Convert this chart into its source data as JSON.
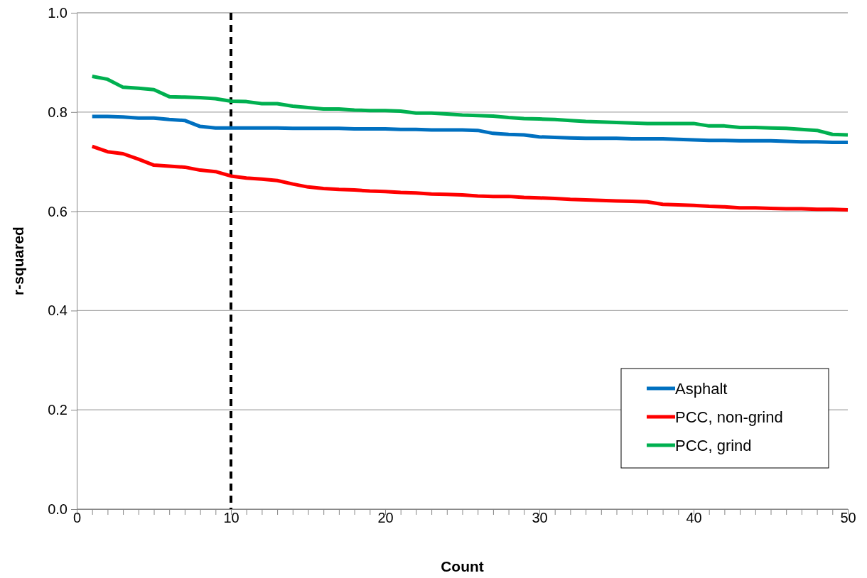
{
  "chart_data": {
    "type": "line",
    "xlabel": "Count",
    "ylabel": "r-squared",
    "x": [
      1,
      2,
      3,
      4,
      5,
      6,
      7,
      8,
      9,
      10,
      11,
      12,
      13,
      14,
      15,
      16,
      17,
      18,
      19,
      20,
      21,
      22,
      23,
      24,
      25,
      26,
      27,
      28,
      29,
      30,
      31,
      32,
      33,
      34,
      35,
      36,
      37,
      38,
      39,
      40,
      41,
      42,
      43,
      44,
      45,
      46,
      47,
      48,
      49,
      50
    ],
    "series": [
      {
        "name": "Asphalt",
        "color": "#0070c0",
        "values": [
          0.791,
          0.791,
          0.79,
          0.788,
          0.788,
          0.785,
          0.783,
          0.771,
          0.768,
          0.768,
          0.768,
          0.768,
          0.768,
          0.767,
          0.767,
          0.767,
          0.767,
          0.766,
          0.766,
          0.766,
          0.765,
          0.765,
          0.764,
          0.764,
          0.764,
          0.763,
          0.757,
          0.755,
          0.754,
          0.75,
          0.749,
          0.748,
          0.747,
          0.747,
          0.747,
          0.746,
          0.746,
          0.746,
          0.745,
          0.744,
          0.743,
          0.743,
          0.742,
          0.742,
          0.742,
          0.741,
          0.74,
          0.74,
          0.739,
          0.739
        ]
      },
      {
        "name": "PCC, non-grind",
        "color": "#ff0000",
        "values": [
          0.731,
          0.72,
          0.716,
          0.705,
          0.693,
          0.691,
          0.689,
          0.683,
          0.68,
          0.671,
          0.667,
          0.665,
          0.662,
          0.655,
          0.649,
          0.646,
          0.644,
          0.643,
          0.641,
          0.64,
          0.638,
          0.637,
          0.635,
          0.634,
          0.633,
          0.631,
          0.63,
          0.63,
          0.628,
          0.627,
          0.626,
          0.624,
          0.623,
          0.622,
          0.621,
          0.62,
          0.619,
          0.614,
          0.613,
          0.612,
          0.61,
          0.609,
          0.607,
          0.607,
          0.606,
          0.605,
          0.605,
          0.604,
          0.604,
          0.603
        ]
      },
      {
        "name": "PCC, grind",
        "color": "#00b050",
        "values": [
          0.872,
          0.866,
          0.85,
          0.848,
          0.845,
          0.831,
          0.83,
          0.829,
          0.827,
          0.822,
          0.821,
          0.817,
          0.817,
          0.812,
          0.809,
          0.806,
          0.806,
          0.804,
          0.803,
          0.803,
          0.802,
          0.798,
          0.798,
          0.796,
          0.794,
          0.793,
          0.792,
          0.789,
          0.787,
          0.786,
          0.785,
          0.783,
          0.781,
          0.78,
          0.779,
          0.778,
          0.777,
          0.777,
          0.777,
          0.777,
          0.772,
          0.772,
          0.769,
          0.769,
          0.768,
          0.767,
          0.765,
          0.763,
          0.755,
          0.754
        ]
      }
    ],
    "xlim": [
      0,
      50
    ],
    "xticks": [
      0,
      {
        "value": 1,
        "label": null
      },
      {
        "value": 2,
        "label": null
      },
      {
        "value": 3,
        "label": null
      },
      {
        "value": 4,
        "label": null
      },
      {
        "value": 5,
        "label": null
      },
      {
        "value": 6,
        "label": null
      },
      {
        "value": 7,
        "label": null
      },
      {
        "value": 8,
        "label": null
      },
      {
        "value": 9,
        "label": null
      },
      10,
      {
        "value": 11,
        "label": null
      },
      {
        "value": 12,
        "label": null
      },
      {
        "value": 13,
        "label": null
      },
      {
        "value": 14,
        "label": null
      },
      {
        "value": 15,
        "label": null
      },
      {
        "value": 16,
        "label": null
      },
      {
        "value": 17,
        "label": null
      },
      {
        "value": 18,
        "label": null
      },
      {
        "value": 19,
        "label": null
      },
      20,
      {
        "value": 21,
        "label": null
      },
      {
        "value": 22,
        "label": null
      },
      {
        "value": 23,
        "label": null
      },
      {
        "value": 24,
        "label": null
      },
      {
        "value": 25,
        "label": null
      },
      {
        "value": 26,
        "label": null
      },
      {
        "value": 27,
        "label": null
      },
      {
        "value": 28,
        "label": null
      },
      {
        "value": 29,
        "label": null
      },
      30,
      {
        "value": 31,
        "label": null
      },
      {
        "value": 32,
        "label": null
      },
      {
        "value": 33,
        "label": null
      },
      {
        "value": 34,
        "label": null
      },
      {
        "value": 35,
        "label": null
      },
      {
        "value": 36,
        "label": null
      },
      {
        "value": 37,
        "label": null
      },
      {
        "value": 38,
        "label": null
      },
      {
        "value": 39,
        "label": null
      },
      40,
      {
        "value": 41,
        "label": null
      },
      {
        "value": 42,
        "label": null
      },
      {
        "value": 43,
        "label": null
      },
      {
        "value": 44,
        "label": null
      },
      {
        "value": 45,
        "label": null
      },
      {
        "value": 46,
        "label": null
      },
      {
        "value": 47,
        "label": null
      },
      {
        "value": 48,
        "label": null
      },
      {
        "value": 49,
        "label": null
      },
      50
    ],
    "ylim": [
      0,
      1
    ],
    "yticks": [
      {
        "value": 0,
        "label": "0.0"
      },
      {
        "value": 0.2,
        "label": "0.2"
      },
      {
        "value": 0.4,
        "label": "0.4"
      },
      {
        "value": 0.6,
        "label": "0.6"
      },
      {
        "value": 0.8,
        "label": "0.8"
      },
      {
        "value": 1,
        "label": "1.0"
      }
    ],
    "grid": "y",
    "legend": "bottom right",
    "marker": "none",
    "line_style": "solid",
    "ref_lines": [
      {
        "axis": "x",
        "value": 10,
        "color": "#000000",
        "line_style": "dashed"
      }
    ]
  }
}
